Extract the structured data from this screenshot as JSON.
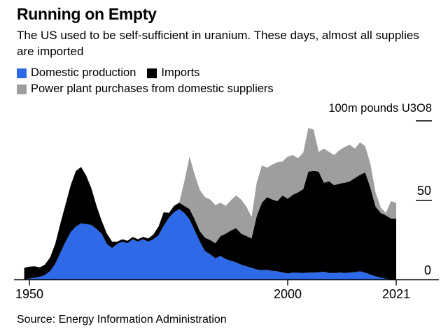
{
  "header": {
    "title": "Running on Empty",
    "subtitle": "The US used to be self-sufficient in uranium. These days, almost all supplies are imported"
  },
  "source_note": "Source: Energy Information Administration",
  "chart_data": {
    "type": "area",
    "stacked": true,
    "grid": false,
    "legend_position": "top-left",
    "unit_label": "100m pounds U3O8",
    "xlim": [
      1949,
      2021
    ],
    "ylim": [
      0,
      100
    ],
    "x": [
      1949,
      1950,
      1951,
      1952,
      1953,
      1954,
      1955,
      1956,
      1957,
      1958,
      1959,
      1960,
      1961,
      1962,
      1963,
      1964,
      1965,
      1966,
      1967,
      1968,
      1969,
      1970,
      1971,
      1972,
      1973,
      1974,
      1975,
      1976,
      1977,
      1978,
      1979,
      1980,
      1981,
      1982,
      1983,
      1984,
      1985,
      1986,
      1987,
      1988,
      1989,
      1990,
      1991,
      1992,
      1993,
      1994,
      1995,
      1996,
      1997,
      1998,
      1999,
      2000,
      2001,
      2002,
      2003,
      2004,
      2005,
      2006,
      2007,
      2008,
      2009,
      2010,
      2011,
      2012,
      2013,
      2014,
      2015,
      2016,
      2017,
      2018,
      2019,
      2020,
      2021
    ],
    "series": [
      {
        "name": "Domestic production",
        "color": "#2E69E8",
        "values": [
          0.3,
          0.8,
          1.3,
          1.9,
          3,
          5.5,
          10,
          17,
          24,
          30,
          33.5,
          35.5,
          35,
          34.5,
          32,
          29,
          22.5,
          20,
          22.5,
          24,
          23,
          25.5,
          24,
          25.5,
          24,
          25.5,
          28,
          34,
          39,
          42.5,
          44.5,
          42,
          38,
          31,
          24,
          18,
          16,
          13.5,
          15,
          13,
          12,
          11,
          9.5,
          8.5,
          7.5,
          6.5,
          6,
          6.3,
          5.6,
          5.3,
          4.6,
          4,
          4.5,
          4.4,
          4.2,
          4.5,
          4.5,
          4.8,
          5,
          4.3,
          4.2,
          4.5,
          4.3,
          4.5,
          4.8,
          5.3,
          4.5,
          3.3,
          2.2,
          1.3,
          0.7,
          0.2,
          0.1
        ]
      },
      {
        "name": "Imports",
        "color": "#000000",
        "values": [
          7.2,
          7.4,
          7.2,
          5.9,
          6.5,
          8.5,
          12.5,
          18.5,
          23.5,
          29.5,
          35,
          35.5,
          30.5,
          23,
          14.5,
          8,
          6.5,
          4,
          1.5,
          1.5,
          1.5,
          1.5,
          1.5,
          1.5,
          2,
          3,
          5.5,
          8.5,
          3,
          4,
          4,
          4.5,
          6.5,
          7,
          6.5,
          8.5,
          9,
          9.5,
          12.5,
          16,
          19,
          21.5,
          19.5,
          19,
          18.5,
          33.5,
          42.5,
          45.7,
          44.9,
          44.2,
          48.4,
          47,
          49,
          50.6,
          52.8,
          63.5,
          64,
          63.2,
          56,
          57.7,
          55.3,
          56,
          56.7,
          57.5,
          59.2,
          60.7,
          63,
          54.7,
          43.8,
          40.7,
          39.8,
          38.3,
          38.4
        ]
      },
      {
        "name": "Power plant purchases from domestic suppliers",
        "color": "#9E9E9E",
        "values": [
          0,
          0,
          0,
          0,
          0,
          0,
          0,
          0,
          0,
          0,
          0,
          0,
          0,
          0,
          0,
          0,
          0,
          0,
          0,
          0,
          0,
          0,
          0,
          0,
          0,
          0,
          0,
          0,
          0,
          0,
          0,
          15.5,
          33,
          28,
          26,
          25.5,
          25.5,
          24,
          21,
          17.5,
          19,
          20.5,
          21.5,
          18.5,
          13.5,
          21,
          23.5,
          18.5,
          22,
          24.5,
          21.5,
          26.5,
          25,
          21.5,
          23,
          27.5,
          26,
          12.5,
          21.5,
          18.5,
          19,
          21,
          22.5,
          23,
          18.5,
          20.5,
          16.5,
          15,
          9,
          3.5,
          1.5,
          11,
          10
        ]
      }
    ],
    "legend_rows": [
      [
        0,
        1
      ],
      [
        2
      ]
    ],
    "x_ticks": [
      {
        "value": 1950,
        "label": "1950"
      },
      {
        "value": 2000,
        "label": "2000"
      },
      {
        "value": 2021,
        "label": "2021"
      }
    ],
    "y_ticks": [
      {
        "value": 0,
        "label": "0",
        "line": false
      },
      {
        "value": 50,
        "label": "50",
        "line": true
      },
      {
        "value": 100,
        "label": "",
        "line": true
      }
    ]
  }
}
